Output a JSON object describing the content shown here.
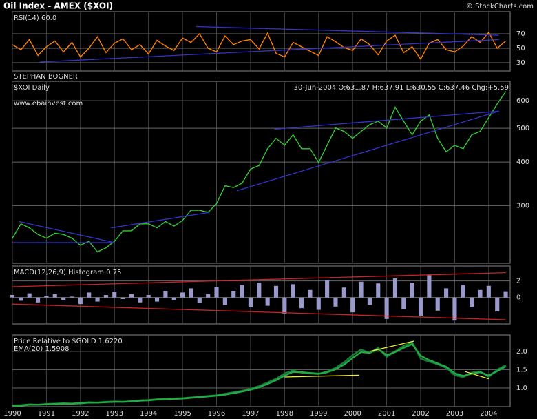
{
  "header": {
    "title": "Oil Index - AMEX ($XOI)",
    "credit": "© StockCharts.com"
  },
  "chart_data": [
    {
      "type": "line",
      "title": "RSI(14) 60.0",
      "annotation": "STEPHAN BOGNER",
      "x": [
        1990,
        1990.25,
        1990.5,
        1990.75,
        1991,
        1991.25,
        1991.5,
        1991.75,
        1992,
        1992.25,
        1992.5,
        1992.75,
        1993,
        1993.25,
        1993.5,
        1993.75,
        1994,
        1994.25,
        1994.5,
        1994.75,
        1995,
        1995.25,
        1995.5,
        1995.75,
        1996,
        1996.25,
        1996.5,
        1996.75,
        1997,
        1997.25,
        1997.5,
        1997.75,
        1998,
        1998.25,
        1998.5,
        1998.75,
        1999,
        1999.25,
        1999.5,
        1999.75,
        2000,
        2000.25,
        2000.5,
        2000.75,
        2001,
        2001.25,
        2001.5,
        2001.75,
        2002,
        2002.25,
        2002.5,
        2002.75,
        2003,
        2003.25,
        2003.5,
        2003.75,
        2004,
        2004.25,
        2004.5
      ],
      "series": [
        {
          "color": "#ff8000",
          "values": [
            55,
            48,
            62,
            40,
            52,
            60,
            45,
            58,
            38,
            50,
            66,
            44,
            57,
            63,
            48,
            55,
            42,
            61,
            53,
            47,
            64,
            58,
            70,
            50,
            45,
            67,
            55,
            60,
            62,
            49,
            71,
            43,
            38,
            58,
            52,
            46,
            40,
            66,
            59,
            51,
            47,
            63,
            55,
            41,
            60,
            68,
            44,
            52,
            35,
            57,
            62,
            48,
            45,
            53,
            66,
            58,
            72,
            50,
            60.0
          ]
        }
      ],
      "xlim": [
        1990,
        2004.63
      ],
      "ylim": [
        18.6,
        100.5
      ],
      "yticks": [
        30,
        50,
        70
      ],
      "grid": true,
      "trendline_color": "#3333cc",
      "trendlines": [
        [
          1995.4,
          80,
          2004.3,
          68
        ],
        [
          1990.8,
          31,
          2004.3,
          62
        ]
      ]
    },
    {
      "type": "line",
      "title": "$XOI Daily",
      "annotation": "30-Jun-2004 O:631.87 H:637.91 L:630.55 C:637.46 Chg:+5.59",
      "watermark": "www.ebainvest.com",
      "x": [
        1990,
        1990.25,
        1990.5,
        1990.75,
        1991,
        1991.25,
        1991.5,
        1991.75,
        1992,
        1992.25,
        1992.5,
        1992.75,
        1993,
        1993.25,
        1993.5,
        1993.75,
        1994,
        1994.25,
        1994.5,
        1994.75,
        1995,
        1995.25,
        1995.5,
        1995.75,
        1996,
        1996.25,
        1996.5,
        1996.75,
        1997,
        1997.25,
        1997.5,
        1997.75,
        1998,
        1998.25,
        1998.5,
        1998.75,
        1999,
        1999.25,
        1999.5,
        1999.75,
        2000,
        2000.25,
        2000.5,
        2000.75,
        2001,
        2001.25,
        2001.5,
        2001.75,
        2002,
        2002.25,
        2002.5,
        2002.75,
        2003,
        2003.25,
        2003.5,
        2003.75,
        2004,
        2004.25,
        2004.5
      ],
      "series": [
        {
          "color": "#33cc33",
          "values": [
            242,
            266,
            259,
            248,
            242,
            250,
            248,
            242,
            231,
            237,
            221,
            227,
            237,
            254,
            254,
            266,
            266,
            259,
            270,
            262,
            272,
            291,
            291,
            287,
            304,
            342,
            338,
            348,
            382,
            391,
            437,
            468,
            447,
            479,
            437,
            437,
            399,
            447,
            501,
            490,
            468,
            490,
            512,
            524,
            501,
            575,
            524,
            479,
            524,
            546,
            468,
            428,
            447,
            437,
            479,
            490,
            537,
            587,
            637.46
          ]
        }
      ],
      "xlim": [
        1990,
        2004.63
      ],
      "ylim": [
        205,
        682
      ],
      "log_scale": true,
      "yticks": [
        300,
        400,
        500,
        600
      ],
      "grid": true,
      "trendline_color": "#3333cc",
      "trendlines": [
        [
          1990.2,
          270,
          1993.0,
          235
        ],
        [
          1990.0,
          235,
          1993.0,
          235
        ],
        [
          1992.9,
          259,
          1995.8,
          287
        ],
        [
          1996.6,
          331,
          2004.3,
          560
        ],
        [
          1997.7,
          497,
          2004.3,
          560
        ]
      ]
    },
    {
      "type": "bar",
      "title": "MACD(12,26,9) Histogram  0.75",
      "x": [
        1990,
        1990.25,
        1990.5,
        1990.75,
        1991,
        1991.25,
        1991.5,
        1991.75,
        1992,
        1992.25,
        1992.5,
        1992.75,
        1993,
        1993.25,
        1993.5,
        1993.75,
        1994,
        1994.25,
        1994.5,
        1994.75,
        1995,
        1995.25,
        1995.5,
        1995.75,
        1996,
        1996.25,
        1996.5,
        1996.75,
        1997,
        1997.25,
        1997.5,
        1997.75,
        1998,
        1998.25,
        1998.5,
        1998.75,
        1999,
        1999.25,
        1999.5,
        1999.75,
        2000,
        2000.25,
        2000.5,
        2000.75,
        2001,
        2001.25,
        2001.5,
        2001.75,
        2002,
        2002.25,
        2002.5,
        2002.75,
        2003,
        2003.25,
        2003.5,
        2003.75,
        2004,
        2004.25,
        2004.5
      ],
      "series": [
        {
          "color": "#9999cc",
          "values": [
            0.3,
            -0.4,
            0.5,
            -0.6,
            0.2,
            0.4,
            -0.3,
            0.1,
            -0.8,
            0.6,
            -0.5,
            0.3,
            0.7,
            -0.2,
            0.4,
            -0.6,
            0.3,
            -0.5,
            0.8,
            -0.3,
            0.6,
            1.1,
            -0.7,
            0.4,
            1.3,
            -0.9,
            0.8,
            1.5,
            -1.2,
            1.8,
            -1.0,
            1.4,
            -2.0,
            1.6,
            -1.3,
            0.9,
            -1.5,
            2.1,
            -1.1,
            1.2,
            -1.8,
            1.9,
            -0.9,
            1.7,
            -2.6,
            2.3,
            -1.4,
            1.8,
            -2.2,
            2.7,
            -1.6,
            1.1,
            -2.8,
            1.5,
            -1.2,
            0.9,
            1.4,
            -1.7,
            0.75
          ]
        }
      ],
      "xlim": [
        1990,
        2004.63
      ],
      "ylim": [
        -3.2,
        3.8
      ],
      "yticks": [
        0,
        2
      ],
      "grid": true,
      "trendline_color": "#cc2222",
      "trendlines": [
        [
          1990,
          1.3,
          2004.5,
          3.0
        ],
        [
          1990,
          -0.8,
          2004.5,
          -2.7
        ]
      ]
    },
    {
      "type": "line",
      "x": [
        1990,
        1990.25,
        1990.5,
        1990.75,
        1991,
        1991.25,
        1991.5,
        1991.75,
        1992,
        1992.25,
        1992.5,
        1992.75,
        1993,
        1993.25,
        1993.5,
        1993.75,
        1994,
        1994.25,
        1994.5,
        1994.75,
        1995,
        1995.25,
        1995.5,
        1995.75,
        1996,
        1996.25,
        1996.5,
        1996.75,
        1997,
        1997.25,
        1997.5,
        1997.75,
        1998,
        1998.25,
        1998.5,
        1998.75,
        1999,
        1999.25,
        1999.5,
        1999.75,
        2000,
        2000.25,
        2000.5,
        2000.75,
        2001,
        2001.25,
        2001.5,
        2001.75,
        2002,
        2002.25,
        2002.5,
        2002.75,
        2003,
        2003.25,
        2003.5,
        2003.75,
        2004,
        2004.25,
        2004.5
      ],
      "series": [
        {
          "name": "Price Relative to $GOLD  1.6220",
          "color": "#1a7a3a",
          "values": [
            0.52,
            0.53,
            0.55,
            0.54,
            0.56,
            0.57,
            0.58,
            0.57,
            0.59,
            0.61,
            0.6,
            0.62,
            0.63,
            0.62,
            0.64,
            0.66,
            0.67,
            0.69,
            0.7,
            0.71,
            0.72,
            0.74,
            0.76,
            0.78,
            0.8,
            0.84,
            0.88,
            0.92,
            0.98,
            1.05,
            1.15,
            1.25,
            1.4,
            1.48,
            1.42,
            1.4,
            1.38,
            1.45,
            1.55,
            1.7,
            1.9,
            2.05,
            1.95,
            2.1,
            1.85,
            2.0,
            2.15,
            2.25,
            1.8,
            1.72,
            1.65,
            1.55,
            1.35,
            1.3,
            1.42,
            1.45,
            1.3,
            1.5,
            1.622
          ]
        },
        {
          "name": "EMA(20) 1.5908",
          "color": "#22aa44",
          "values": [
            0.51,
            0.52,
            0.54,
            0.54,
            0.55,
            0.56,
            0.57,
            0.57,
            0.58,
            0.6,
            0.6,
            0.61,
            0.62,
            0.62,
            0.63,
            0.65,
            0.66,
            0.68,
            0.69,
            0.7,
            0.71,
            0.73,
            0.75,
            0.77,
            0.79,
            0.82,
            0.86,
            0.9,
            0.95,
            1.02,
            1.11,
            1.21,
            1.34,
            1.44,
            1.43,
            1.41,
            1.39,
            1.43,
            1.51,
            1.64,
            1.82,
            1.98,
            1.96,
            2.06,
            1.9,
            1.98,
            2.1,
            2.2,
            1.88,
            1.76,
            1.67,
            1.58,
            1.4,
            1.33,
            1.39,
            1.43,
            1.34,
            1.46,
            1.5908
          ]
        }
      ],
      "xlim": [
        1990,
        2004.63
      ],
      "ylim": [
        0.49,
        2.45
      ],
      "yticks": [
        {
          "value": 1,
          "label": "1.0"
        },
        1.5,
        {
          "value": 2,
          "label": "2.0"
        }
      ],
      "grid": true,
      "xticks": [
        1990,
        1991,
        1992,
        1993,
        1994,
        1995,
        1996,
        1997,
        1998,
        1999,
        2000,
        2001,
        2002,
        2003,
        2004
      ],
      "trendline_color": "#eeee33",
      "trendlines": [
        [
          1998,
          1.3,
          2000.2,
          1.35
        ],
        [
          2000.5,
          2.0,
          2001.8,
          2.28
        ],
        [
          2003.3,
          1.45,
          2004.0,
          1.25
        ]
      ]
    }
  ]
}
